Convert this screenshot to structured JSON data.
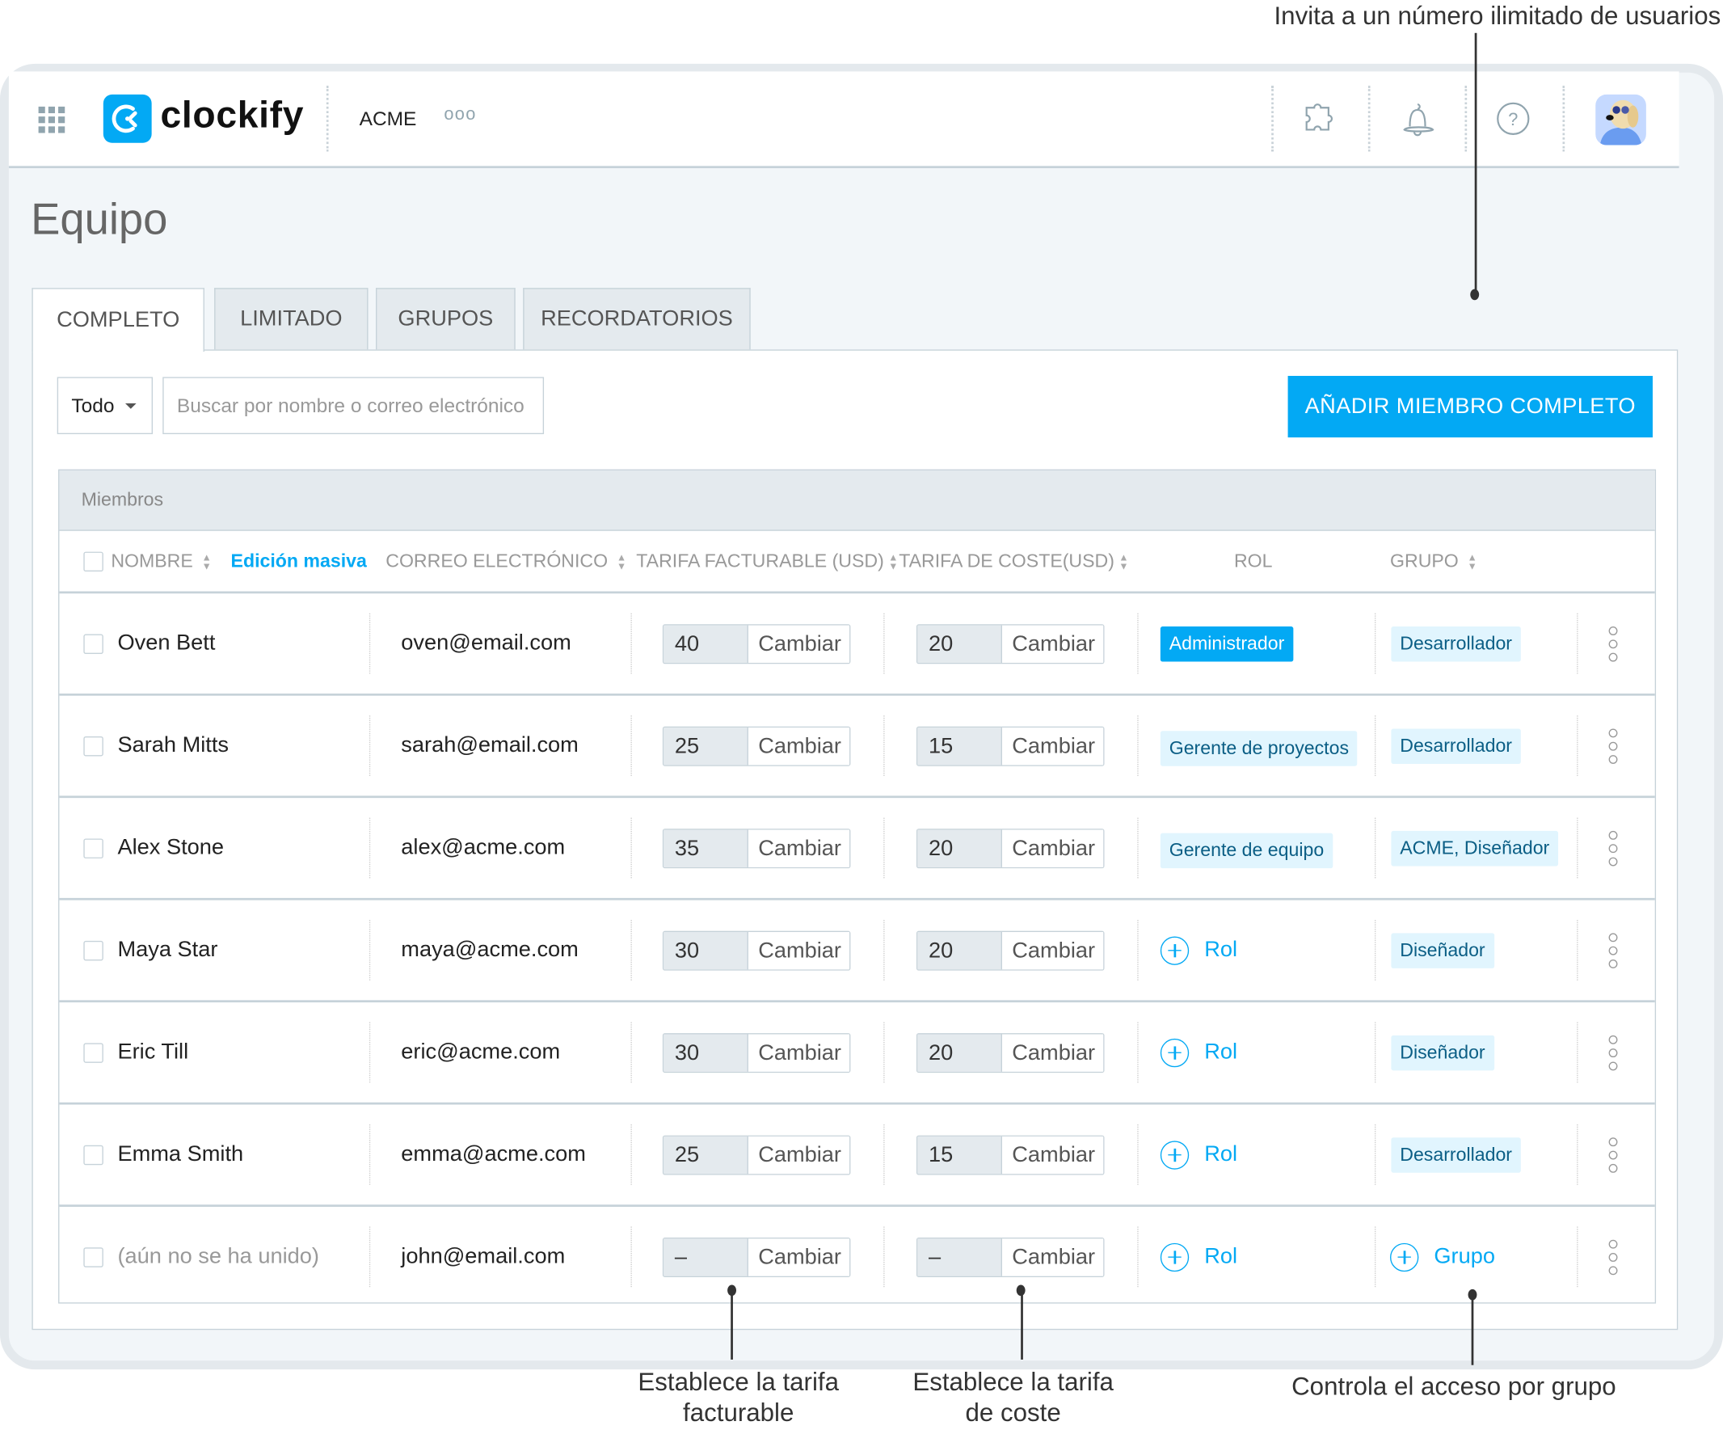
{
  "app": {
    "logo_text": "clockify",
    "workspace": "ACME",
    "more": "ooo",
    "brand_color": "#03a9f4"
  },
  "header_icons": [
    "apps-grid-icon",
    "puzzle-icon",
    "bell-icon",
    "help-icon",
    "avatar"
  ],
  "page": {
    "title": "Equipo"
  },
  "tabs": [
    {
      "label": "COMPLETO",
      "active": true
    },
    {
      "label": "LIMITADO"
    },
    {
      "label": "GRUPOS"
    },
    {
      "label": "RECORDATORIOS"
    }
  ],
  "filters": {
    "dropdown": "Todo",
    "search_placeholder": "Buscar por nombre o correo electrónico",
    "add_button": "AÑADIR MIEMBRO COMPLETO"
  },
  "table": {
    "section": "Miembros",
    "columns": {
      "name": "NOMBRE",
      "bulk_edit": "Edición masiva",
      "email": "CORREO ELECTRÓNICO",
      "billable": "TARIFA FACTURABLE (USD)",
      "cost": "TARIFA DE COSTE(USD)",
      "role": "ROL",
      "group": "GRUPO"
    },
    "change_label": "Cambiar",
    "add_role_label": "Rol",
    "add_group_label": "Grupo",
    "rows": [
      {
        "name": "Oven Bett",
        "email": "oven@email.com",
        "billable": "40",
        "cost": "20",
        "role": "Administrador",
        "role_type": "admin",
        "group": "Desarrollador"
      },
      {
        "name": "Sarah Mitts",
        "email": "sarah@email.com",
        "billable": "25",
        "cost": "15",
        "role": "Gerente de proyectos",
        "role_type": "tag",
        "group": "Desarrollador"
      },
      {
        "name": "Alex Stone",
        "email": "alex@acme.com",
        "billable": "35",
        "cost": "20",
        "role": "Gerente de equipo",
        "role_type": "tag",
        "group": "ACME, Diseñador"
      },
      {
        "name": "Maya Star",
        "email": "maya@acme.com",
        "billable": "30",
        "cost": "20",
        "role": null,
        "role_type": "add",
        "group": "Diseñador"
      },
      {
        "name": "Eric Till",
        "email": "eric@acme.com",
        "billable": "30",
        "cost": "20",
        "role": null,
        "role_type": "add",
        "group": "Diseñador"
      },
      {
        "name": "Emma Smith",
        "email": "emma@acme.com",
        "billable": "25",
        "cost": "15",
        "role": null,
        "role_type": "add",
        "group": "Desarrollador"
      },
      {
        "name": "(aún no se ha unido)",
        "email": "john@email.com",
        "billable": "–",
        "cost": "–",
        "role": null,
        "role_type": "add",
        "group": null,
        "pending": true
      }
    ]
  },
  "annotations": {
    "top": "Invita a un número ilimitado de usuarios",
    "billable_1": "Establece la tarifa",
    "billable_2": "facturable",
    "cost_1": "Establece la tarifa",
    "cost_2": "de coste",
    "group": "Controla el acceso por grupo"
  }
}
